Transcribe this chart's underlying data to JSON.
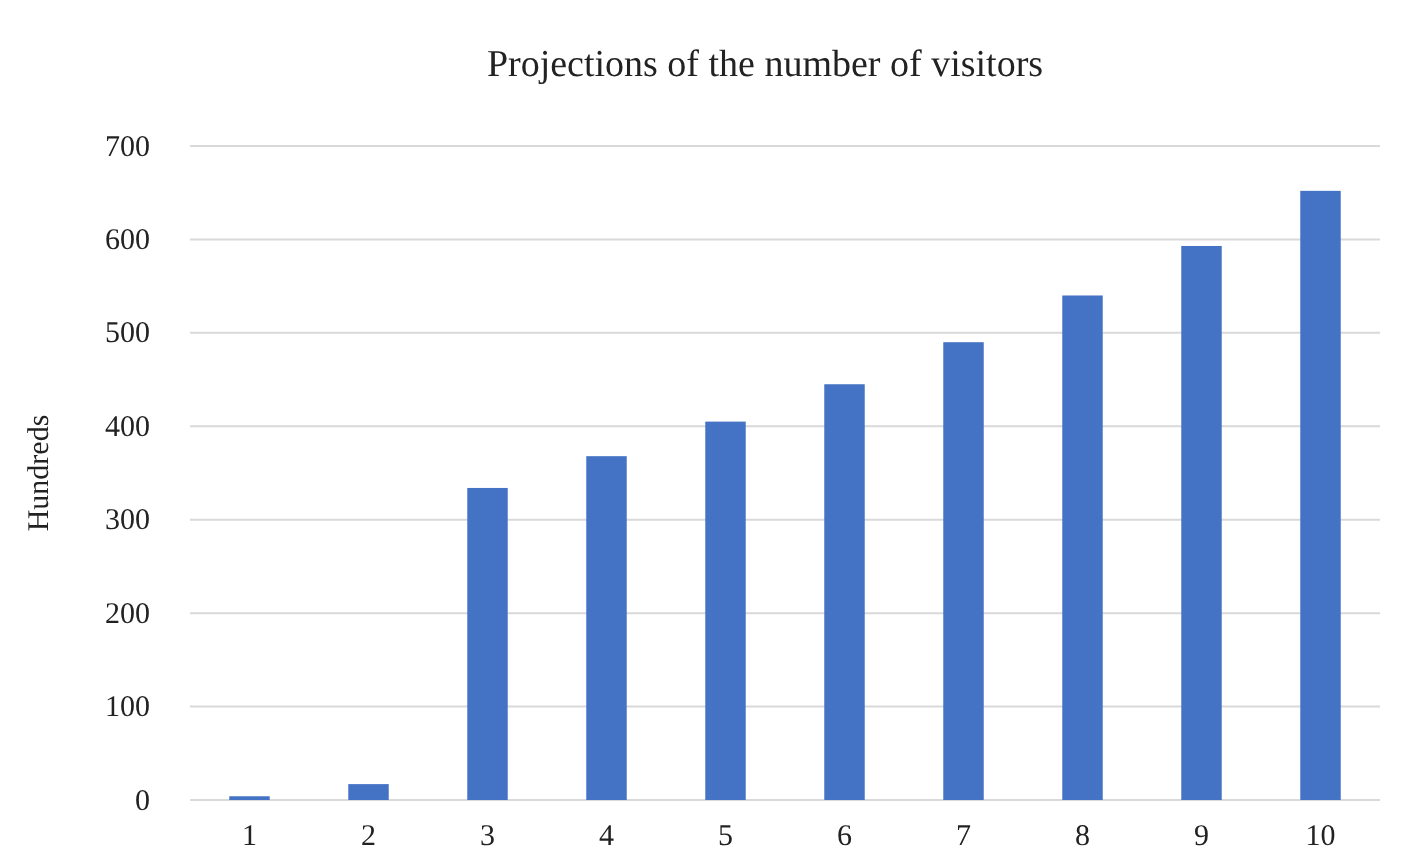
{
  "chart_data": {
    "type": "bar",
    "title": "Projections of the number of visitors",
    "ylabel": "Hundreds",
    "categories": [
      "1",
      "2",
      "3",
      "4",
      "5",
      "6",
      "7",
      "8",
      "9",
      "10"
    ],
    "values": [
      4,
      17,
      334,
      368,
      405,
      445,
      490,
      540,
      593,
      652
    ],
    "color": "#4472c4",
    "ylim": [
      0,
      700
    ],
    "yticks": [
      0,
      100,
      200,
      300,
      400,
      500,
      600,
      700
    ],
    "grid": "y"
  }
}
